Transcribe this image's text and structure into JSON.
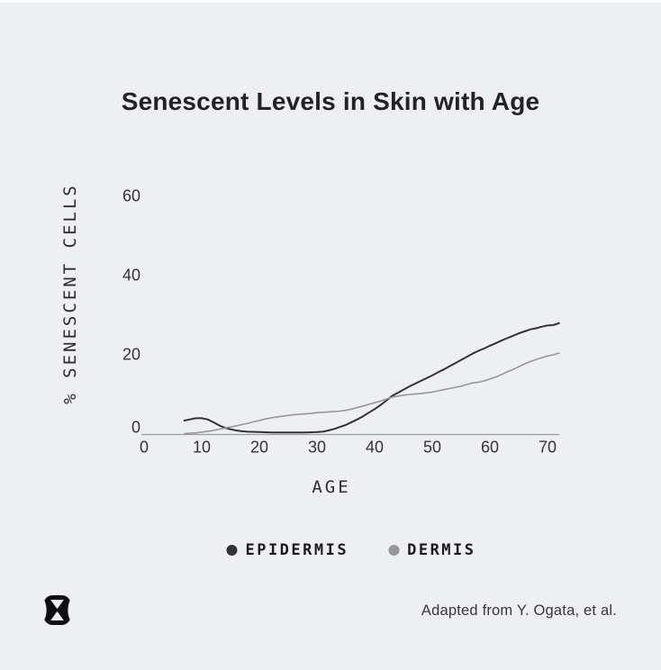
{
  "branding": {
    "logo_icon": "hourglass-logo"
  },
  "attribution": {
    "text": "Adapted from Y. Ogata, et al."
  },
  "colors": {
    "background": "#edeff1",
    "axis_line": "#9a9b9f",
    "tick_text": "#333338",
    "title_text": "#232327"
  },
  "chart_data": {
    "type": "line",
    "title": "Senescent Levels in Skin with Age",
    "xlabel": "AGE",
    "ylabel": "% SENESCENT CELLS",
    "x_ticks": [
      0,
      10,
      20,
      30,
      40,
      50,
      60,
      70
    ],
    "y_ticks": [
      0,
      20,
      40,
      60
    ],
    "xlim": [
      0,
      72
    ],
    "ylim": [
      0,
      70
    ],
    "grid": false,
    "legend_position": "bottom-center",
    "series": [
      {
        "name": "EPIDERMIS",
        "color": "#323237",
        "stroke_width": 2,
        "points": [
          [
            7,
            3.4
          ],
          [
            8,
            3.7
          ],
          [
            9,
            4.0
          ],
          [
            10,
            4.0
          ],
          [
            11,
            3.7
          ],
          [
            12,
            3.0
          ],
          [
            13,
            2.2
          ],
          [
            14,
            1.6
          ],
          [
            15,
            1.2
          ],
          [
            16,
            0.9
          ],
          [
            17,
            0.7
          ],
          [
            18,
            0.6
          ],
          [
            20,
            0.5
          ],
          [
            22,
            0.4
          ],
          [
            24,
            0.4
          ],
          [
            26,
            0.4
          ],
          [
            28,
            0.4
          ],
          [
            30,
            0.5
          ],
          [
            31,
            0.6
          ],
          [
            32,
            0.9
          ],
          [
            33,
            1.3
          ],
          [
            34,
            1.8
          ],
          [
            35,
            2.3
          ],
          [
            36,
            3.0
          ],
          [
            37,
            3.7
          ],
          [
            38,
            4.5
          ],
          [
            39,
            5.4
          ],
          [
            40,
            6.3
          ],
          [
            41,
            7.3
          ],
          [
            42,
            8.4
          ],
          [
            43,
            9.6
          ],
          [
            44,
            10.4
          ],
          [
            45,
            11.2
          ],
          [
            46,
            12.0
          ],
          [
            47,
            12.7
          ],
          [
            48,
            13.4
          ],
          [
            49,
            14.1
          ],
          [
            50,
            14.8
          ],
          [
            51,
            15.6
          ],
          [
            52,
            16.3
          ],
          [
            53,
            17.1
          ],
          [
            54,
            17.9
          ],
          [
            55,
            18.7
          ],
          [
            56,
            19.5
          ],
          [
            57,
            20.3
          ],
          [
            58,
            21.0
          ],
          [
            59,
            21.6
          ],
          [
            60,
            22.3
          ],
          [
            61,
            22.9
          ],
          [
            62,
            23.6
          ],
          [
            63,
            24.2
          ],
          [
            64,
            24.8
          ],
          [
            65,
            25.4
          ],
          [
            66,
            25.9
          ],
          [
            67,
            26.4
          ],
          [
            68,
            26.7
          ],
          [
            69,
            27.1
          ],
          [
            70,
            27.4
          ],
          [
            71,
            27.5
          ],
          [
            72,
            28.0
          ]
        ]
      },
      {
        "name": "DERMIS",
        "color": "#96979b",
        "stroke_width": 1.6,
        "points": [
          [
            7,
            0.1
          ],
          [
            8,
            0.2
          ],
          [
            9,
            0.3
          ],
          [
            10,
            0.5
          ],
          [
            11,
            0.7
          ],
          [
            12,
            0.9
          ],
          [
            13,
            1.2
          ],
          [
            14,
            1.5
          ],
          [
            15,
            1.8
          ],
          [
            16,
            2.1
          ],
          [
            17,
            2.4
          ],
          [
            18,
            2.7
          ],
          [
            19,
            3.1
          ],
          [
            20,
            3.4
          ],
          [
            21,
            3.8
          ],
          [
            22,
            4.1
          ],
          [
            23,
            4.3
          ],
          [
            24,
            4.5
          ],
          [
            25,
            4.7
          ],
          [
            26,
            4.9
          ],
          [
            27,
            5.0
          ],
          [
            28,
            5.1
          ],
          [
            29,
            5.2
          ],
          [
            30,
            5.4
          ],
          [
            31,
            5.5
          ],
          [
            32,
            5.6
          ],
          [
            33,
            5.7
          ],
          [
            34,
            5.8
          ],
          [
            35,
            6.0
          ],
          [
            36,
            6.3
          ],
          [
            37,
            6.7
          ],
          [
            38,
            7.1
          ],
          [
            39,
            7.5
          ],
          [
            40,
            7.9
          ],
          [
            41,
            8.3
          ],
          [
            42,
            8.8
          ],
          [
            43,
            9.3
          ],
          [
            44,
            9.6
          ],
          [
            45,
            9.8
          ],
          [
            46,
            10.0
          ],
          [
            47,
            10.1
          ],
          [
            48,
            10.2
          ],
          [
            49,
            10.4
          ],
          [
            50,
            10.6
          ],
          [
            51,
            10.9
          ],
          [
            52,
            11.2
          ],
          [
            53,
            11.5
          ],
          [
            54,
            11.8
          ],
          [
            55,
            12.1
          ],
          [
            56,
            12.5
          ],
          [
            57,
            12.9
          ],
          [
            58,
            13.1
          ],
          [
            59,
            13.4
          ],
          [
            60,
            13.9
          ],
          [
            61,
            14.4
          ],
          [
            62,
            15.0
          ],
          [
            63,
            15.7
          ],
          [
            64,
            16.3
          ],
          [
            65,
            17.0
          ],
          [
            66,
            17.7
          ],
          [
            67,
            18.3
          ],
          [
            68,
            18.8
          ],
          [
            69,
            19.3
          ],
          [
            70,
            19.7
          ],
          [
            71,
            20.0
          ],
          [
            72,
            20.4
          ]
        ]
      }
    ]
  }
}
